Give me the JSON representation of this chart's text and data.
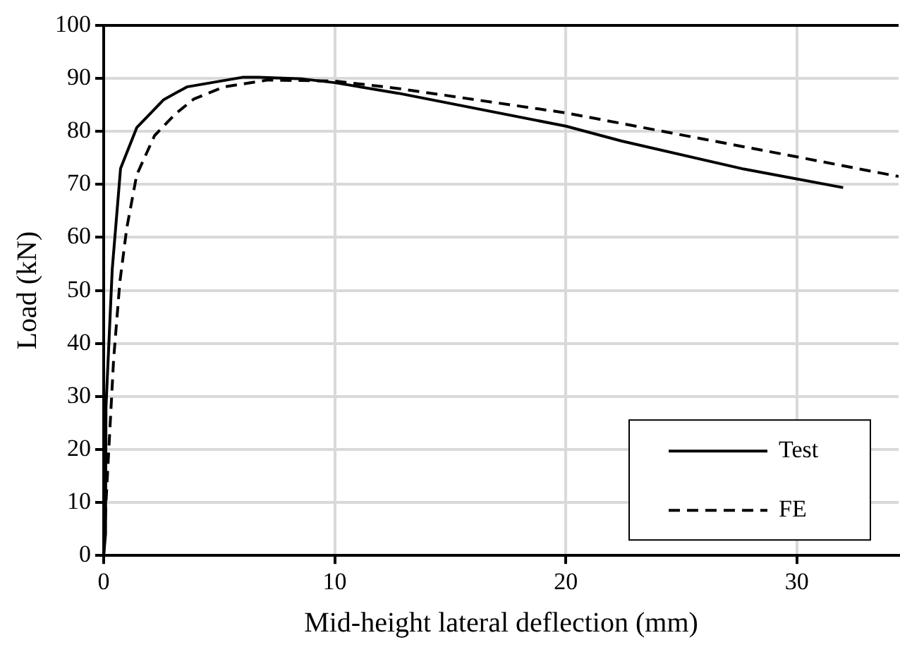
{
  "chart_data": {
    "type": "line",
    "xlabel": "Mid-height lateral deflection (mm)",
    "ylabel": "Load (kN)",
    "xlim": [
      0,
      34.4
    ],
    "xticks": [
      0,
      10,
      20,
      30
    ],
    "ylim": [
      0,
      100
    ],
    "yticks": [
      0,
      10,
      20,
      30,
      40,
      50,
      60,
      70,
      80,
      90,
      100
    ],
    "grid": true,
    "legend": "bottom right",
    "marker": "none",
    "series": [
      {
        "name": "Test",
        "color": "#000000",
        "line_style": "solid",
        "x": [
          0,
          0.08,
          0.1,
          0.37,
          0.73,
          1.43,
          2.6,
          3.6,
          6.0,
          6.7,
          8.6,
          10,
          12.75,
          20,
          22.4,
          27.7,
          32
        ],
        "values": [
          0,
          4,
          28,
          54,
          73,
          80.7,
          86,
          88.4,
          90.2,
          90.2,
          89.9,
          89.2,
          87.2,
          81,
          78.2,
          72.9,
          69.4
        ]
      },
      {
        "name": "FE",
        "color": "#000000",
        "line_style": "dashed",
        "x": [
          0,
          0.1,
          0.43,
          0.7,
          1.0,
          1.43,
          2.2,
          3.1,
          3.9,
          5.2,
          7.1,
          10,
          12.75,
          20,
          30,
          34.4
        ],
        "values": [
          0,
          10,
          37,
          51.6,
          61.8,
          71.8,
          79.2,
          83.3,
          86.1,
          88.4,
          89.7,
          89.5,
          88.1,
          83.5,
          75.2,
          71.5
        ]
      }
    ]
  }
}
